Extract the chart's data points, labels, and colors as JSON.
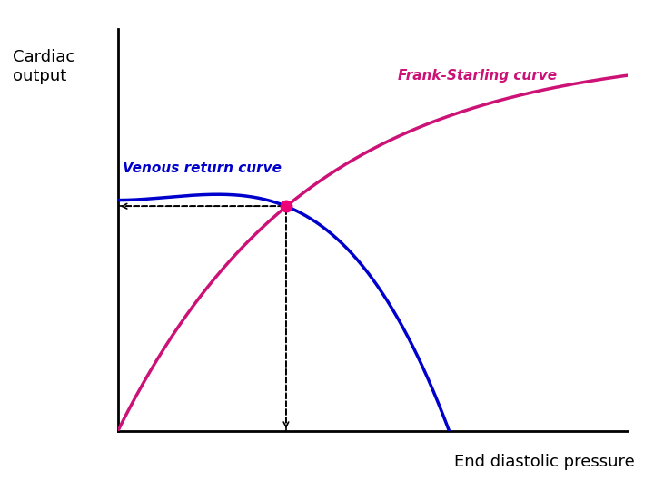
{
  "title_cardiac_output": "Cardiac\noutput",
  "xlabel": "End diastolic pressure",
  "frank_starling_label": "Frank-Starling curve",
  "venous_return_label": "Venous return curve",
  "frank_starling_color": "#CC1177",
  "venous_return_color": "#0000CC",
  "intersection_color": "#EE0077",
  "background_color": "#FFFFFF",
  "xlim": [
    0,
    10
  ],
  "ylim": [
    0,
    10
  ],
  "intersection_x": 3.3,
  "intersection_y": 5.6
}
